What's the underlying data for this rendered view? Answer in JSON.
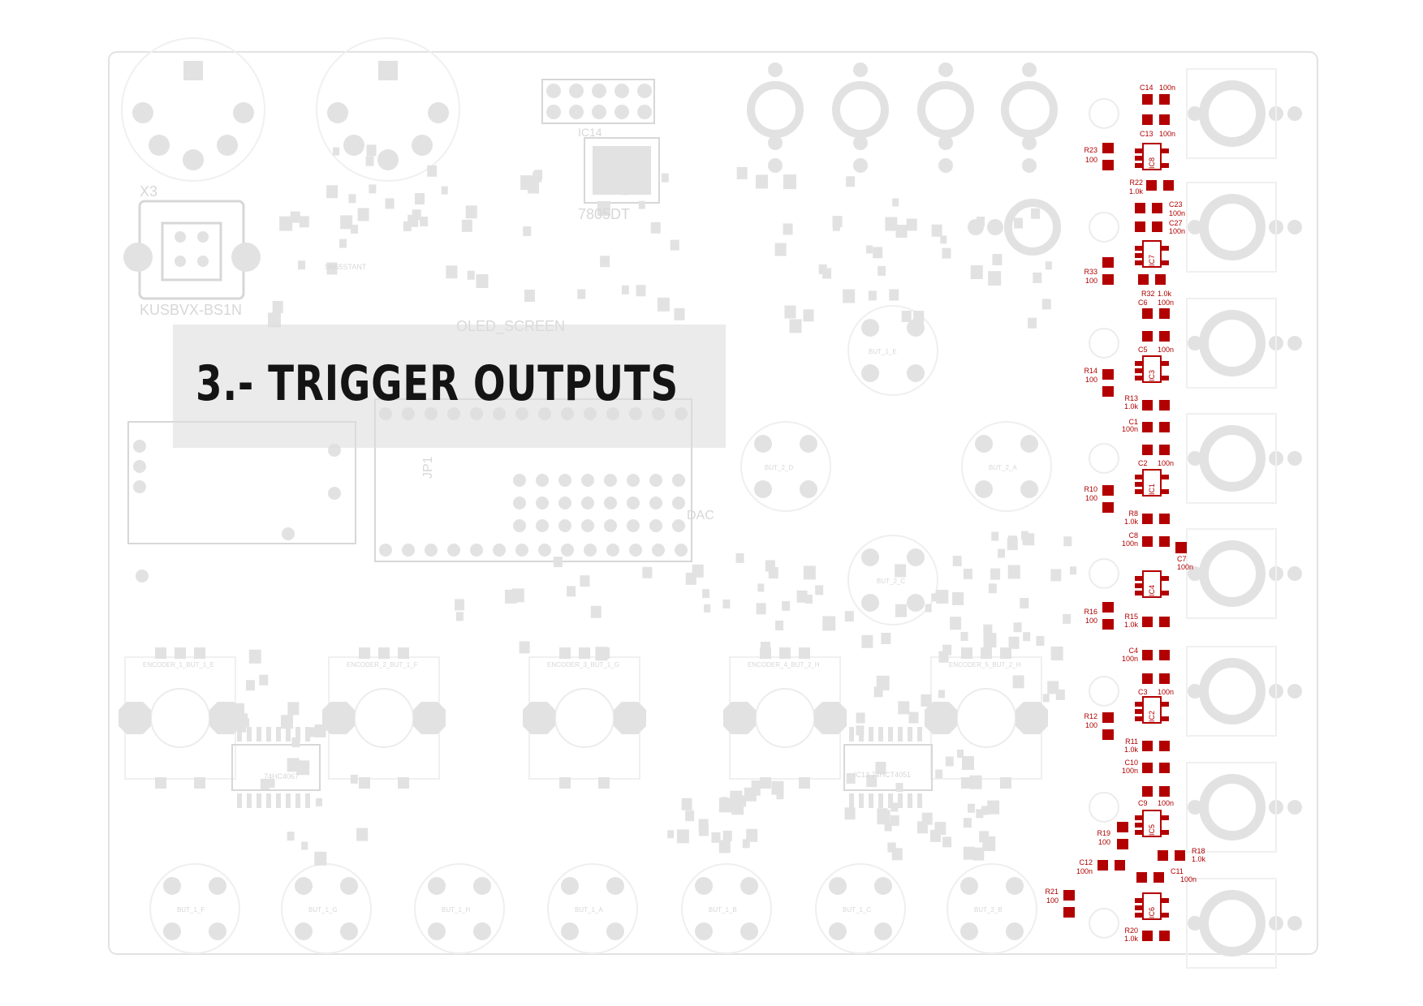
{
  "title": "3.- TRIGGER OUTPUTS",
  "colors": {
    "background": "#ffffff",
    "board_faded": "#e2e2e2",
    "silk_faded": "#d7d7d7",
    "highlight": "#b30000",
    "banner": "#dedede",
    "title": "#141414"
  },
  "background_labels": {
    "connector_x3": "X3",
    "usb_connector": "KUSBVX-BS1N",
    "regulator": "7805DT",
    "ic14": "IC14",
    "oled": "OLED_SCREEN",
    "jp": "JP1",
    "dac": "DAC",
    "audio_ic": "SN65STANT",
    "mux": "74HC4067",
    "esp": "IC13 74HCT4051",
    "buttons": [
      "BUT_1_E",
      "BUT_1_F",
      "BUT_1_G",
      "BUT_1_H",
      "BUT_1_A",
      "BUT_1_B",
      "BUT_1_C",
      "BUT_2_B",
      "BUT_2_D",
      "BUT_2_A",
      "BUT_2_C"
    ],
    "encoders": [
      "ENCODER_1_BUT_1_E",
      "ENCODER_2_BUT_1_F",
      "ENCODER_3_BUT_1_G",
      "ENCODER_4_BUT_2_H",
      "ENCODER_5_BUT_2_H"
    ]
  },
  "trigger_components": [
    {
      "name": "C14",
      "value": "100n"
    },
    {
      "name": "C13",
      "value": "100n"
    },
    {
      "name": "R23",
      "value": "100"
    },
    {
      "name": "IC8",
      "value": ""
    },
    {
      "name": "R22",
      "value": "1.0k"
    },
    {
      "name": "C23",
      "value": "100n"
    },
    {
      "name": "C27",
      "value": "100n"
    },
    {
      "name": "IC7",
      "value": ""
    },
    {
      "name": "R33",
      "value": "100"
    },
    {
      "name": "R32",
      "value": "1.0k"
    },
    {
      "name": "C6",
      "value": "100n"
    },
    {
      "name": "C5",
      "value": "100n"
    },
    {
      "name": "IC3",
      "value": ""
    },
    {
      "name": "R14",
      "value": "100"
    },
    {
      "name": "R13",
      "value": "1.0k"
    },
    {
      "name": "C1",
      "value": "100n"
    },
    {
      "name": "C2",
      "value": "100n"
    },
    {
      "name": "IC1",
      "value": ""
    },
    {
      "name": "R10",
      "value": "100"
    },
    {
      "name": "R8",
      "value": "1.0k"
    },
    {
      "name": "C8",
      "value": "100n"
    },
    {
      "name": "C7",
      "value": "100n"
    },
    {
      "name": "IC4",
      "value": ""
    },
    {
      "name": "R16",
      "value": "100"
    },
    {
      "name": "R15",
      "value": "1.0k"
    },
    {
      "name": "C4",
      "value": "100n"
    },
    {
      "name": "C3",
      "value": "100n"
    },
    {
      "name": "IC2",
      "value": ""
    },
    {
      "name": "R12",
      "value": "100"
    },
    {
      "name": "R11",
      "value": "1.0k"
    },
    {
      "name": "C10",
      "value": "100n"
    },
    {
      "name": "C9",
      "value": "100n"
    },
    {
      "name": "IC5",
      "value": ""
    },
    {
      "name": "R19",
      "value": "100"
    },
    {
      "name": "R18",
      "value": "1.0k"
    },
    {
      "name": "C12",
      "value": "100n"
    },
    {
      "name": "C11",
      "value": "100n"
    },
    {
      "name": "R21",
      "value": "100"
    },
    {
      "name": "IC6",
      "value": ""
    },
    {
      "name": "R20",
      "value": "1.0k"
    }
  ]
}
